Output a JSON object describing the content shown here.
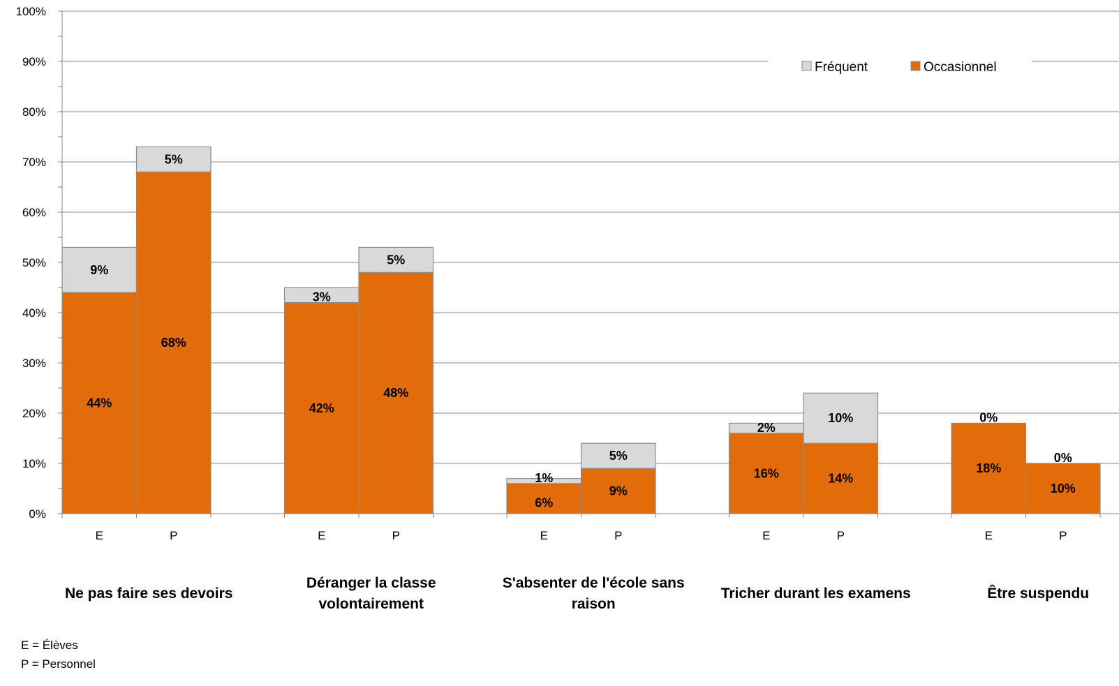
{
  "chart_data": {
    "type": "bar",
    "stacked": true,
    "ylim": [
      0,
      100
    ],
    "yticks": [
      "0%",
      "10%",
      "20%",
      "30%",
      "40%",
      "50%",
      "60%",
      "70%",
      "80%",
      "90%",
      "100%"
    ],
    "grid": true,
    "legend_position": "top-right",
    "series": [
      {
        "name": "Occasionnel",
        "color": "#E36C0A"
      },
      {
        "name": "Fréquent",
        "color": "#D9D9D9"
      }
    ],
    "groups": [
      {
        "label": "Ne pas faire ses devoirs",
        "bars": [
          {
            "tick": "E",
            "occasionnel": 44,
            "occasionnel_label": "44%",
            "frequent": 9,
            "frequent_label": "9%"
          },
          {
            "tick": "P",
            "occasionnel": 68,
            "occasionnel_label": "68%",
            "frequent": 5,
            "frequent_label": "5%"
          }
        ]
      },
      {
        "label": "Déranger la classe volontairement",
        "bars": [
          {
            "tick": "E",
            "occasionnel": 42,
            "occasionnel_label": "42%",
            "frequent": 3,
            "frequent_label": "3%"
          },
          {
            "tick": "P",
            "occasionnel": 48,
            "occasionnel_label": "48%",
            "frequent": 5,
            "frequent_label": "5%"
          }
        ]
      },
      {
        "label": "S'absenter de l'école sans raison",
        "bars": [
          {
            "tick": "E",
            "occasionnel": 6,
            "occasionnel_label": "6%",
            "frequent": 1,
            "frequent_label": "1%"
          },
          {
            "tick": "P",
            "occasionnel": 9,
            "occasionnel_label": "9%",
            "frequent": 5,
            "frequent_label": "5%"
          }
        ]
      },
      {
        "label": "Tricher durant les examens",
        "bars": [
          {
            "tick": "E",
            "occasionnel": 16,
            "occasionnel_label": "16%",
            "frequent": 2,
            "frequent_label": "2%"
          },
          {
            "tick": "P",
            "occasionnel": 14,
            "occasionnel_label": "14%",
            "frequent": 10,
            "frequent_label": "10%"
          }
        ]
      },
      {
        "label": "Être suspendu",
        "bars": [
          {
            "tick": "E",
            "occasionnel": 18,
            "occasionnel_label": "18%",
            "frequent": 0,
            "frequent_label": "0%"
          },
          {
            "tick": "P",
            "occasionnel": 10,
            "occasionnel_label": "10%",
            "frequent": 0,
            "frequent_label": "0%"
          }
        ]
      }
    ]
  },
  "footnotes": {
    "e": "E = Élèves",
    "p": "P = Personnel"
  }
}
